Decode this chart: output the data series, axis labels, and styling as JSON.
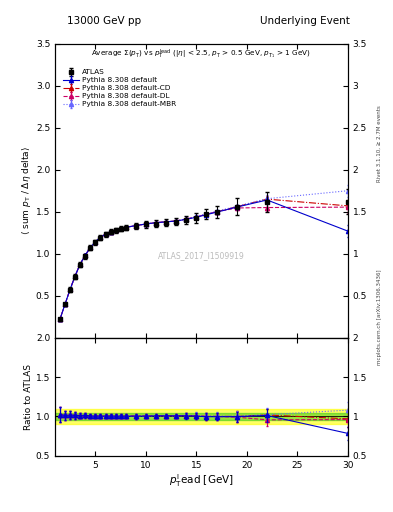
{
  "title_left": "13000 GeV pp",
  "title_right": "Underlying Event",
  "watermark": "ATLAS_2017_I1509919",
  "right_label_top": "Rivet 3.1.10, ≥ 2.7M events",
  "right_label_bot": "mcplots.cern.ch [arXiv:1306.3436]",
  "ylabel_main": "⟨ sum p_T / Δη delta⟩",
  "ylabel_ratio": "Ratio to ATLAS",
  "xlabel": "p$_T^l$ead [GeV]",
  "ylim_main": [
    0.0,
    3.5
  ],
  "ylim_ratio": [
    0.5,
    2.0
  ],
  "xlim": [
    1,
    30
  ],
  "yticks_main": [
    0.5,
    1.0,
    1.5,
    2.0,
    2.5,
    3.0,
    3.5
  ],
  "yticks_ratio": [
    0.5,
    1.0,
    1.5,
    2.0
  ],
  "atlas_x": [
    1.5,
    2.0,
    2.5,
    3.0,
    3.5,
    4.0,
    4.5,
    5.0,
    5.5,
    6.0,
    6.5,
    7.0,
    7.5,
    8.0,
    9.0,
    10.0,
    11.0,
    12.0,
    13.0,
    14.0,
    15.0,
    16.0,
    17.0,
    19.0,
    22.0,
    30.0
  ],
  "atlas_y": [
    0.22,
    0.4,
    0.57,
    0.73,
    0.87,
    0.97,
    1.07,
    1.14,
    1.19,
    1.23,
    1.26,
    1.28,
    1.3,
    1.31,
    1.33,
    1.35,
    1.36,
    1.37,
    1.38,
    1.4,
    1.43,
    1.47,
    1.5,
    1.56,
    1.62,
    1.62
  ],
  "atlas_yerr": [
    0.02,
    0.02,
    0.03,
    0.03,
    0.03,
    0.03,
    0.03,
    0.03,
    0.03,
    0.03,
    0.03,
    0.03,
    0.03,
    0.03,
    0.04,
    0.04,
    0.04,
    0.04,
    0.04,
    0.05,
    0.06,
    0.06,
    0.07,
    0.1,
    0.12,
    0.15
  ],
  "py_default_x": [
    1.5,
    2.0,
    2.5,
    3.0,
    3.5,
    4.0,
    4.5,
    5.0,
    5.5,
    6.0,
    6.5,
    7.0,
    7.5,
    8.0,
    9.0,
    10.0,
    11.0,
    12.0,
    13.0,
    14.0,
    15.0,
    16.0,
    17.0,
    19.0,
    22.0,
    30.0
  ],
  "py_default_y": [
    0.225,
    0.405,
    0.58,
    0.74,
    0.88,
    0.985,
    1.075,
    1.145,
    1.195,
    1.235,
    1.265,
    1.285,
    1.305,
    1.315,
    1.335,
    1.355,
    1.37,
    1.38,
    1.39,
    1.41,
    1.435,
    1.465,
    1.495,
    1.555,
    1.64,
    1.27
  ],
  "py_default_yerr": [
    0.005,
    0.005,
    0.005,
    0.005,
    0.005,
    0.005,
    0.005,
    0.005,
    0.005,
    0.005,
    0.005,
    0.005,
    0.005,
    0.005,
    0.005,
    0.005,
    0.005,
    0.005,
    0.005,
    0.008,
    0.008,
    0.01,
    0.012,
    0.02,
    0.04,
    0.07
  ],
  "py_cd_x": [
    1.5,
    2.0,
    2.5,
    3.0,
    3.5,
    4.0,
    4.5,
    5.0,
    5.5,
    6.0,
    6.5,
    7.0,
    7.5,
    8.0,
    9.0,
    10.0,
    11.0,
    12.0,
    13.0,
    14.0,
    15.0,
    16.0,
    17.0,
    19.0,
    22.0,
    30.0
  ],
  "py_cd_y": [
    0.225,
    0.405,
    0.58,
    0.74,
    0.88,
    0.985,
    1.075,
    1.145,
    1.195,
    1.235,
    1.265,
    1.285,
    1.305,
    1.315,
    1.335,
    1.355,
    1.37,
    1.38,
    1.39,
    1.415,
    1.44,
    1.47,
    1.5,
    1.56,
    1.65,
    1.57
  ],
  "py_cd_yerr": [
    0.005,
    0.005,
    0.005,
    0.005,
    0.005,
    0.005,
    0.005,
    0.005,
    0.005,
    0.005,
    0.005,
    0.005,
    0.005,
    0.005,
    0.005,
    0.005,
    0.005,
    0.005,
    0.005,
    0.008,
    0.008,
    0.01,
    0.012,
    0.02,
    0.04,
    0.07
  ],
  "py_dl_x": [
    1.5,
    2.0,
    2.5,
    3.0,
    3.5,
    4.0,
    4.5,
    5.0,
    5.5,
    6.0,
    6.5,
    7.0,
    7.5,
    8.0,
    9.0,
    10.0,
    11.0,
    12.0,
    13.0,
    14.0,
    15.0,
    16.0,
    17.0,
    19.0,
    22.0,
    30.0
  ],
  "py_dl_y": [
    0.225,
    0.405,
    0.58,
    0.74,
    0.88,
    0.985,
    1.075,
    1.145,
    1.195,
    1.235,
    1.265,
    1.285,
    1.305,
    1.315,
    1.335,
    1.355,
    1.37,
    1.38,
    1.39,
    1.415,
    1.44,
    1.47,
    1.5,
    1.545,
    1.55,
    1.555
  ],
  "py_dl_yerr": [
    0.005,
    0.005,
    0.005,
    0.005,
    0.005,
    0.005,
    0.005,
    0.005,
    0.005,
    0.005,
    0.005,
    0.005,
    0.005,
    0.005,
    0.005,
    0.005,
    0.005,
    0.005,
    0.005,
    0.008,
    0.008,
    0.01,
    0.012,
    0.02,
    0.04,
    0.07
  ],
  "py_mbr_x": [
    1.5,
    2.0,
    2.5,
    3.0,
    3.5,
    4.0,
    4.5,
    5.0,
    5.5,
    6.0,
    6.5,
    7.0,
    7.5,
    8.0,
    9.0,
    10.0,
    11.0,
    12.0,
    13.0,
    14.0,
    15.0,
    16.0,
    17.0,
    19.0,
    22.0,
    30.0
  ],
  "py_mbr_y": [
    0.225,
    0.405,
    0.58,
    0.74,
    0.88,
    0.985,
    1.075,
    1.145,
    1.195,
    1.235,
    1.265,
    1.285,
    1.305,
    1.315,
    1.335,
    1.355,
    1.37,
    1.38,
    1.39,
    1.415,
    1.445,
    1.475,
    1.505,
    1.565,
    1.655,
    1.75
  ],
  "py_mbr_yerr": [
    0.005,
    0.005,
    0.005,
    0.005,
    0.005,
    0.005,
    0.005,
    0.005,
    0.005,
    0.005,
    0.005,
    0.005,
    0.005,
    0.005,
    0.005,
    0.005,
    0.005,
    0.005,
    0.005,
    0.008,
    0.008,
    0.01,
    0.012,
    0.02,
    0.04,
    0.07
  ],
  "atlas_band_green": 0.05,
  "atlas_band_yellow": 0.1,
  "color_atlas": "#000000",
  "color_default": "#0000cc",
  "color_cd": "#cc0000",
  "color_dl": "#cc0066",
  "color_mbr": "#6666ff",
  "bg_color": "#ffffff"
}
